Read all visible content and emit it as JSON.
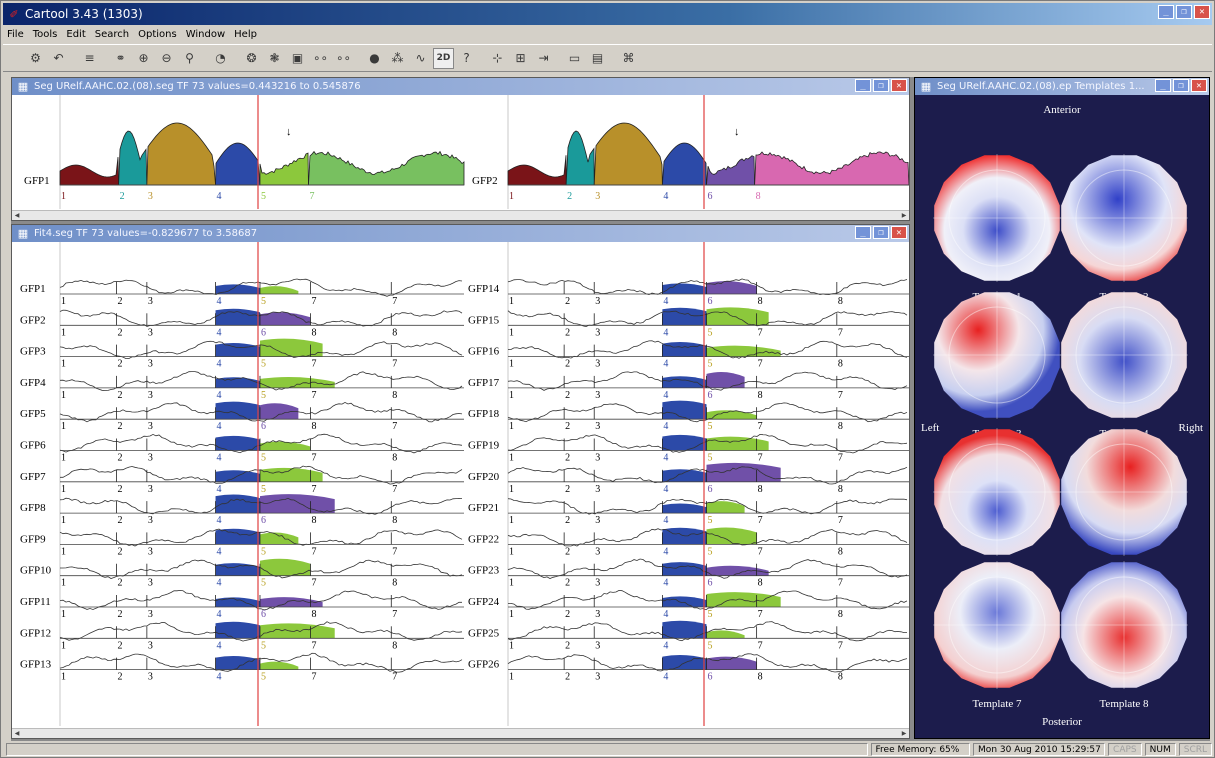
{
  "app": {
    "title": "Cartool  3.43  (1303)"
  },
  "menu": [
    "File",
    "Tools",
    "Edit",
    "Search",
    "Options",
    "Window",
    "Help"
  ],
  "toolbar": {
    "mode_label": "2D"
  },
  "seg_window": {
    "title": "Seg URelf.AAHC.02.(08).seg   TF 73  values=0.443216 to 0.545876",
    "left_label": "GFP1",
    "right_label": "GFP2",
    "left_nums": [
      "1",
      "2",
      "3",
      "4",
      "5",
      "7"
    ],
    "right_nums": [
      "1",
      "2",
      "3",
      "4",
      "6",
      "8"
    ]
  },
  "fit_window": {
    "title": "Fit4.seg   TF 73  values=-0.829677 to 3.58687",
    "left_labels": [
      "GFP1",
      "GFP2",
      "GFP3",
      "GFP4",
      "GFP5",
      "GFP6",
      "GFP7",
      "GFP8",
      "GFP9",
      "GFP10",
      "GFP11",
      "GFP12",
      "GFP13"
    ],
    "right_labels": [
      "GFP14",
      "GFP15",
      "GFP16",
      "GFP17",
      "GFP18",
      "GFP19",
      "GFP20",
      "GFP21",
      "GFP22",
      "GFP23",
      "GFP24",
      "GFP25",
      "GFP26"
    ]
  },
  "template_window": {
    "title": "Seg URelf.AAHC.02.(08).ep   Templates 1...",
    "anterior": "Anterior",
    "posterior": "Posterior",
    "left": "Left",
    "right": "Right",
    "templates": [
      "Template 1",
      "Template 2",
      "Template 3",
      "Template 4",
      "Template 5",
      "Template 6",
      "Template 7",
      "Template 8"
    ]
  },
  "colors": {
    "seg1": "#7a1418",
    "seg2": "#1a9a9a",
    "seg3": "#b8902a",
    "seg4": "#2c4aa8",
    "seg5": "#8cc83c",
    "seg6": "#7050a8",
    "seg7": "#78c060",
    "seg8": "#d868b0",
    "cursor": "#e04040",
    "template_bg": "#1c1c4c"
  },
  "status": {
    "memory": "Free Memory: 65%",
    "datetime": "Mon 30 Aug 2010  15:29:57",
    "caps": "CAPS",
    "num": "NUM",
    "scrl": "SCRL"
  }
}
